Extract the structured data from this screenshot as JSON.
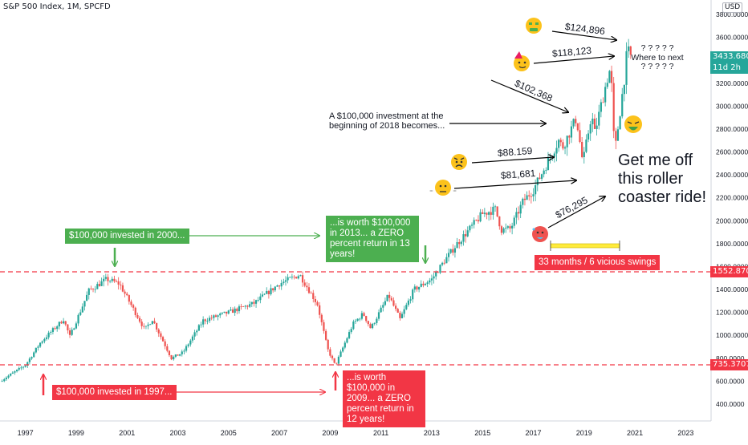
{
  "header": {
    "title": "S&P 500 Index, 1M, SPCFD",
    "currency_badge": "USD"
  },
  "price_tags": {
    "last_price": "3433.6800",
    "countdown": "11d 2h",
    "level_high": "1552.8700",
    "level_low": "735.3707",
    "last_color": "#26a69a",
    "level_color": "#f23645"
  },
  "annotations": {
    "inv_2018": "A $100,000 investment at the beginning of 2018 becomes...",
    "v124": "$124,896",
    "v118": "$118,123",
    "v102": "$102,368",
    "v88": "$88.159",
    "v81": "$81,681",
    "v76": "$76,295",
    "where_next": "? ? ? ? ? Where to next ? ? ? ? ?",
    "roller": "Get me off this roller coaster ride!",
    "swings": "33 months / 6 vicious swings",
    "inv_2000": "$100,000 invested in 2000...",
    "worth_2013": "...is worth $100,000 in 2013... a ZERO percent return in 13 years!",
    "inv_1997": "$100,000 invested in 1997...",
    "worth_2009": "...is worth $100,000 in 2009... a ZERO percent return in 12 years!"
  },
  "chart_data": {
    "type": "candlestick",
    "title": "S&P 500 Index, 1M, SPCFD",
    "xlabel": "",
    "ylabel": "",
    "x_range": [
      1996.0,
      2024.0
    ],
    "ylim": [
      200,
      3860
    ],
    "x_ticks": [
      "1997",
      "1999",
      "2001",
      "2003",
      "2005",
      "2007",
      "2009",
      "2011",
      "2013",
      "2015",
      "2017",
      "2019",
      "2021",
      "2023"
    ],
    "y_ticks": [
      "400.0000",
      "600.0000",
      "800.0000",
      "1000.0000",
      "1200.0000",
      "1400.0000",
      "1600.0000",
      "1800.0000",
      "2000.0000",
      "2200.0000",
      "2400.0000",
      "2600.0000",
      "2800.0000",
      "3000.0000",
      "3200.0000",
      "3400.0000",
      "3600.0000",
      "3800.0000"
    ],
    "horizontal_levels": [
      1552.87,
      735.3707
    ],
    "last_price": 3433.68,
    "up_color": "#26a69a",
    "down_color": "#ef5350",
    "price_path": [
      {
        "t": 1996.0,
        "p": 600
      },
      {
        "t": 1997.0,
        "p": 740
      },
      {
        "t": 1997.6,
        "p": 940
      },
      {
        "t": 1998.5,
        "p": 1140
      },
      {
        "t": 1998.75,
        "p": 990
      },
      {
        "t": 1999.5,
        "p": 1390
      },
      {
        "t": 2000.2,
        "p": 1490
      },
      {
        "t": 2000.7,
        "p": 1450
      },
      {
        "t": 2001.7,
        "p": 1050
      },
      {
        "t": 2002.0,
        "p": 1140
      },
      {
        "t": 2002.75,
        "p": 800
      },
      {
        "t": 2003.2,
        "p": 850
      },
      {
        "t": 2004.0,
        "p": 1130
      },
      {
        "t": 2005.0,
        "p": 1200
      },
      {
        "t": 2006.0,
        "p": 1280
      },
      {
        "t": 2007.0,
        "p": 1450
      },
      {
        "t": 2007.8,
        "p": 1530
      },
      {
        "t": 2008.5,
        "p": 1270
      },
      {
        "t": 2008.9,
        "p": 880
      },
      {
        "t": 2009.2,
        "p": 735
      },
      {
        "t": 2009.9,
        "p": 1100
      },
      {
        "t": 2010.3,
        "p": 1190
      },
      {
        "t": 2010.6,
        "p": 1060
      },
      {
        "t": 2011.3,
        "p": 1350
      },
      {
        "t": 2011.75,
        "p": 1140
      },
      {
        "t": 2012.3,
        "p": 1400
      },
      {
        "t": 2013.0,
        "p": 1490
      },
      {
        "t": 2013.5,
        "p": 1650
      },
      {
        "t": 2014.0,
        "p": 1800
      },
      {
        "t": 2015.0,
        "p": 2060
      },
      {
        "t": 2015.5,
        "p": 2100
      },
      {
        "t": 2015.75,
        "p": 1920
      },
      {
        "t": 2016.1,
        "p": 1930
      },
      {
        "t": 2016.6,
        "p": 2170
      },
      {
        "t": 2017.0,
        "p": 2270
      },
      {
        "t": 2018.0,
        "p": 2700
      },
      {
        "t": 2018.15,
        "p": 2640
      },
      {
        "t": 2018.7,
        "p": 2900
      },
      {
        "t": 2018.95,
        "p": 2500
      },
      {
        "t": 2019.3,
        "p": 2940
      },
      {
        "t": 2019.4,
        "p": 2750
      },
      {
        "t": 2019.9,
        "p": 3230
      },
      {
        "t": 2020.05,
        "p": 3340
      },
      {
        "t": 2020.2,
        "p": 2580
      },
      {
        "t": 2020.6,
        "p": 3270
      },
      {
        "t": 2020.7,
        "p": 3500
      },
      {
        "t": 2020.8,
        "p": 3434
      }
    ]
  }
}
